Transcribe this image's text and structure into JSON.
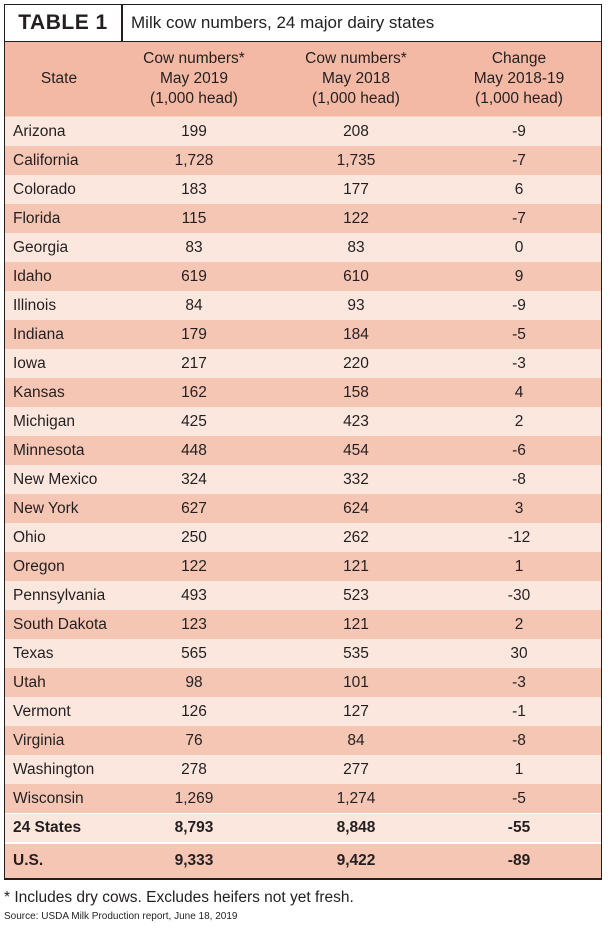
{
  "title": {
    "label": "TABLE 1",
    "text": "Milk cow numbers, 24 major dairy states"
  },
  "headers": {
    "state": "State",
    "may2019": "Cow numbers*\nMay 2019\n(1,000 head)",
    "may2018": "Cow numbers*\nMay 2018\n(1,000 head)",
    "change": "Change\nMay 2018-19\n(1,000 head)"
  },
  "rows": [
    {
      "state": "Arizona",
      "may2019": "199",
      "may2018": "208",
      "change": "-9"
    },
    {
      "state": "California",
      "may2019": "1,728",
      "may2018": "1,735",
      "change": "-7"
    },
    {
      "state": "Colorado",
      "may2019": "183",
      "may2018": "177",
      "change": "6"
    },
    {
      "state": "Florida",
      "may2019": "115",
      "may2018": "122",
      "change": "-7"
    },
    {
      "state": "Georgia",
      "may2019": "83",
      "may2018": "83",
      "change": "0"
    },
    {
      "state": "Idaho",
      "may2019": "619",
      "may2018": "610",
      "change": "9"
    },
    {
      "state": "Illinois",
      "may2019": "84",
      "may2018": "93",
      "change": "-9"
    },
    {
      "state": "Indiana",
      "may2019": "179",
      "may2018": "184",
      "change": "-5"
    },
    {
      "state": "Iowa",
      "may2019": "217",
      "may2018": "220",
      "change": "-3"
    },
    {
      "state": "Kansas",
      "may2019": "162",
      "may2018": "158",
      "change": "4"
    },
    {
      "state": "Michigan",
      "may2019": "425",
      "may2018": "423",
      "change": "2"
    },
    {
      "state": "Minnesota",
      "may2019": "448",
      "may2018": "454",
      "change": "-6"
    },
    {
      "state": "New Mexico",
      "may2019": "324",
      "may2018": "332",
      "change": "-8"
    },
    {
      "state": "New York",
      "may2019": "627",
      "may2018": "624",
      "change": "3"
    },
    {
      "state": "Ohio",
      "may2019": "250",
      "may2018": "262",
      "change": "-12"
    },
    {
      "state": "Oregon",
      "may2019": "122",
      "may2018": "121",
      "change": "1"
    },
    {
      "state": "Pennsylvania",
      "may2019": "493",
      "may2018": "523",
      "change": "-30"
    },
    {
      "state": "South Dakota",
      "may2019": "123",
      "may2018": "121",
      "change": "2"
    },
    {
      "state": "Texas",
      "may2019": "565",
      "may2018": "535",
      "change": "30"
    },
    {
      "state": "Utah",
      "may2019": "98",
      "may2018": "101",
      "change": "-3"
    },
    {
      "state": "Vermont",
      "may2019": "126",
      "may2018": "127",
      "change": "-1"
    },
    {
      "state": "Virginia",
      "may2019": "76",
      "may2018": "84",
      "change": "-8"
    },
    {
      "state": "Washington",
      "may2019": "278",
      "may2018": "277",
      "change": "1"
    },
    {
      "state": "Wisconsin",
      "may2019": "1,269",
      "may2018": "1,274",
      "change": "-5"
    }
  ],
  "total": {
    "state": "24 States",
    "may2019": "8,793",
    "may2018": "8,848",
    "change": "-55"
  },
  "us": {
    "state": "U.S.",
    "may2019": "9,333",
    "may2018": "9,422",
    "change": "-89"
  },
  "footnote": "* Includes dry cows. Excludes heifers not yet fresh.",
  "source": "Source: USDA Milk Production report, June 18, 2019",
  "colors": {
    "header_bg": "#f4b9a4",
    "row_light": "#fce7de",
    "row_dark": "#f6c6b4",
    "border": "#231f20"
  }
}
